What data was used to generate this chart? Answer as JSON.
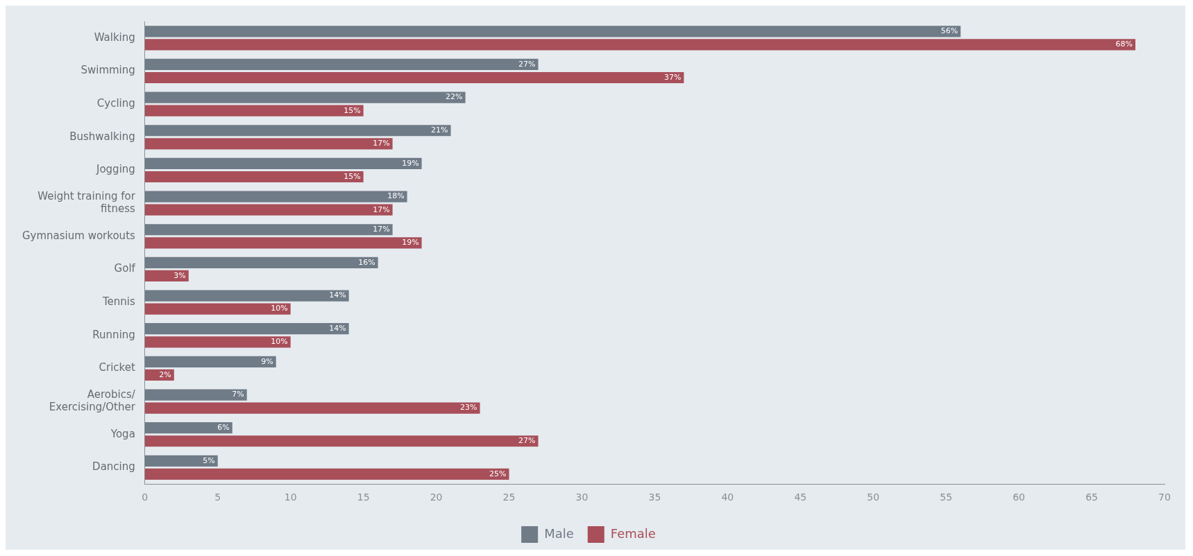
{
  "chart_data": {
    "type": "bar",
    "orientation": "horizontal",
    "categories": [
      "Walking",
      "Swimming",
      "Cycling",
      "Bushwalking",
      "Jogging",
      "Weight training for fitness",
      "Gymnasium workouts",
      "Golf",
      "Tennis",
      "Running",
      "Cricket",
      "Aerobics/ Exercising/Other",
      "Yoga",
      "Dancing"
    ],
    "series": [
      {
        "name": "Male",
        "color": "#6f7b87",
        "values": [
          56,
          27,
          22,
          21,
          19,
          18,
          17,
          16,
          14,
          14,
          9,
          7,
          6,
          5
        ],
        "value_labels": [
          "56%",
          "27%",
          "22%",
          "21%",
          "19%",
          "18%",
          "17%",
          "16%",
          "14%",
          "14%",
          "9%",
          "7%",
          "6%",
          "5%"
        ]
      },
      {
        "name": "Female",
        "color": "#a84f5a",
        "values": [
          68,
          37,
          15,
          17,
          15,
          17,
          19,
          3,
          10,
          10,
          2,
          23,
          27,
          25
        ],
        "value_labels": [
          "68%",
          "37%",
          "15%",
          "17%",
          "15%",
          "17%",
          "19%",
          "3%",
          "10%",
          "10%",
          "2%",
          "23%",
          "27%",
          "25%"
        ]
      }
    ],
    "xlim": [
      0,
      70
    ],
    "xticks": [
      0,
      5,
      10,
      15,
      20,
      25,
      30,
      35,
      40,
      45,
      50,
      55,
      60,
      65,
      70
    ],
    "grid": false,
    "legend": "bottom"
  }
}
